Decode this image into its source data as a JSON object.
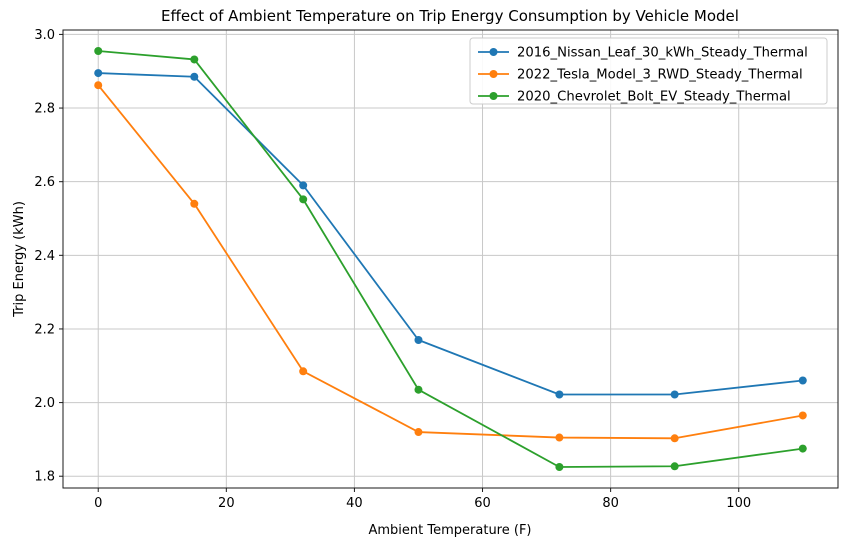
{
  "chart_data": {
    "type": "line",
    "title": "Effect of Ambient Temperature on Trip Energy Consumption by Vehicle Model",
    "xlabel": "Ambient Temperature (F)",
    "ylabel": "Trip Energy (kWh)",
    "x": [
      0,
      15,
      32,
      50,
      72,
      90,
      110
    ],
    "series": [
      {
        "name": "2016_Nissan_Leaf_30_kWh_Steady_Thermal",
        "color": "#1f77b4",
        "values": [
          2.895,
          2.885,
          2.59,
          2.17,
          2.022,
          2.022,
          2.06
        ]
      },
      {
        "name": "2022_Tesla_Model_3_RWD_Steady_Thermal",
        "color": "#ff7f0e",
        "values": [
          2.862,
          2.54,
          2.085,
          1.92,
          1.905,
          1.903,
          1.965
        ]
      },
      {
        "name": "2020_Chevrolet_Bolt_EV_Steady_Thermal",
        "color": "#2ca02c",
        "values": [
          2.955,
          2.932,
          2.552,
          2.035,
          1.825,
          1.827,
          1.875
        ]
      }
    ],
    "xlim": [
      -5.5,
      115.5
    ],
    "ylim": [
      1.768,
      3.012
    ],
    "xticks": [
      0,
      20,
      40,
      60,
      80,
      100
    ],
    "yticks": [
      1.8,
      2.0,
      2.2,
      2.4,
      2.6,
      2.8,
      3.0
    ],
    "grid": true,
    "legend_position": "upper right",
    "marker": "circle",
    "colors": {
      "grid": "#c8c8c8",
      "spine": "#1a1a1a",
      "text": "#000000",
      "legend_border": "#cccccc",
      "background": "#ffffff"
    }
  }
}
